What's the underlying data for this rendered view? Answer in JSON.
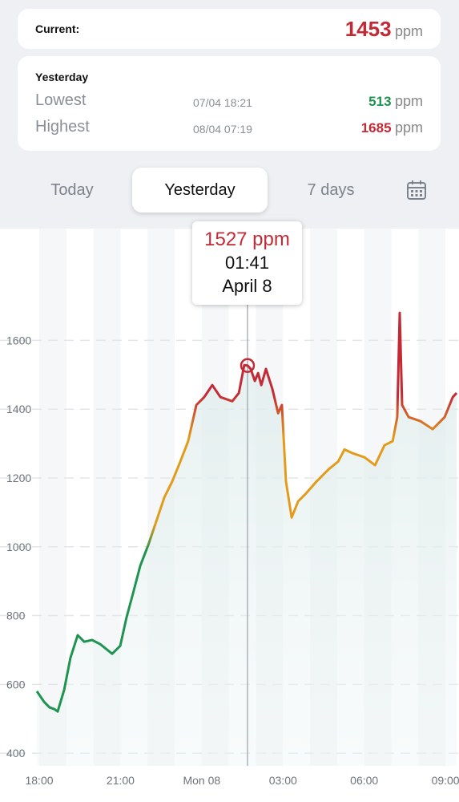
{
  "header": {
    "current": {
      "label": "Current:",
      "value": 1453,
      "unit": "ppm"
    },
    "yesterday": {
      "title": "Yesterday",
      "rows": [
        {
          "label": "Lowest",
          "time": "07/04 18:21",
          "value": 513,
          "unit": "ppm"
        },
        {
          "label": "Highest",
          "time": "08/04 07:19",
          "value": 1685,
          "unit": "ppm"
        }
      ]
    }
  },
  "tabs": {
    "items": [
      "Today",
      "Yesterday",
      "7 days"
    ],
    "active": 1
  },
  "chart_data": {
    "type": "line",
    "x": [
      -0.09,
      0.18,
      0.38,
      0.56,
      0.68,
      0.92,
      1.15,
      1.42,
      1.66,
      1.95,
      2.25,
      2.69,
      2.99,
      3.22,
      3.46,
      3.73,
      4.02,
      4.32,
      4.62,
      4.91,
      5.21,
      5.5,
      5.8,
      6.09,
      6.39,
      6.69,
      7.13,
      7.37,
      7.57,
      7.69,
      7.81,
      7.96,
      8.08,
      8.2,
      8.37,
      8.61,
      8.82,
      8.96,
      9.11,
      9.32,
      9.56,
      9.85,
      10.24,
      10.68,
      11.04,
      11.27,
      11.57,
      12.01,
      12.4,
      12.75,
      13.05,
      13.22,
      13.31,
      13.4,
      13.64,
      14.08,
      14.53,
      14.97,
      15.27,
      15.41
    ],
    "values": [
      580,
      549,
      533,
      528,
      521,
      584,
      677,
      743,
      724,
      729,
      717,
      689,
      712,
      794,
      864,
      945,
      1004,
      1074,
      1144,
      1190,
      1248,
      1307,
      1412,
      1435,
      1470,
      1435,
      1423,
      1447,
      1528,
      1527,
      1517,
      1482,
      1505,
      1470,
      1517,
      1458,
      1388,
      1412,
      1190,
      1085,
      1132,
      1155,
      1190,
      1225,
      1248,
      1283,
      1272,
      1260,
      1237,
      1295,
      1307,
      1377,
      1680,
      1412,
      1377,
      1365,
      1342,
      1377,
      1435,
      1447
    ],
    "colors": [
      "#c42a35",
      "#e39b1c",
      "#1f9450"
    ],
    "xlim": [
      -1.45,
      15.5
    ],
    "ylim": [
      363,
      1925
    ],
    "xticks": [
      {
        "value": 0,
        "label": "18:00"
      },
      {
        "value": 3,
        "label": "21:00"
      },
      {
        "value": 6,
        "label": "Mon 08"
      },
      {
        "value": 9,
        "label": "03:00"
      },
      {
        "value": 12,
        "label": "06:00"
      },
      {
        "value": 15,
        "label": "09:00"
      }
    ],
    "yticks": [
      400,
      600,
      800,
      1000,
      1200,
      1400,
      1600
    ],
    "grid": true,
    "highlight": {
      "x": 7.69,
      "y": 1527,
      "label": "1527 ppm",
      "time": "01:41",
      "date": "April 8"
    }
  }
}
